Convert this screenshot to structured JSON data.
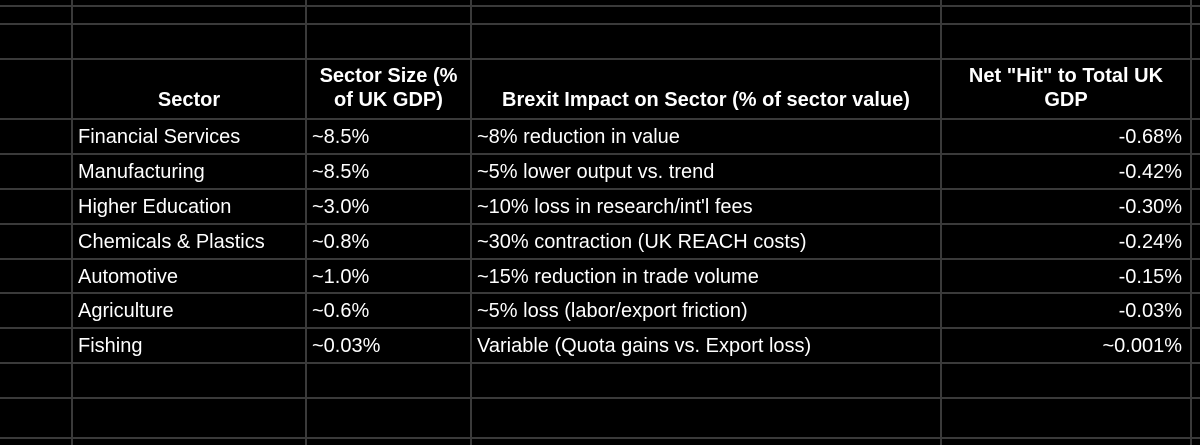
{
  "table": {
    "headers": {
      "sector": "Sector",
      "size": "Sector Size (% of UK GDP)",
      "impact": "Brexit Impact on Sector (% of sector value)",
      "net": "Net \"Hit\" to Total UK GDP"
    },
    "rows": [
      {
        "sector": "Financial Services",
        "size": "~8.5%",
        "impact": "~8% reduction in value",
        "net": "-0.68%"
      },
      {
        "sector": "Manufacturing",
        "size": "~8.5%",
        "impact": "~5% lower output vs. trend",
        "net": "-0.42%"
      },
      {
        "sector": "Higher Education",
        "size": "~3.0%",
        "impact": "~10% loss in research/int'l fees",
        "net": "-0.30%"
      },
      {
        "sector": "Chemicals & Plastics",
        "size": "~0.8%",
        "impact": "~30% contraction (UK REACH costs)",
        "net": "-0.24%"
      },
      {
        "sector": "Automotive",
        "size": "~1.0%",
        "impact": "~15% reduction in trade volume",
        "net": "-0.15%"
      },
      {
        "sector": "Agriculture",
        "size": "~0.6%",
        "impact": "~5% loss (labor/export friction)",
        "net": "-0.03%"
      },
      {
        "sector": "Fishing",
        "size": "~0.03%",
        "impact": "Variable (Quota gains vs. Export loss)",
        "net": "~0.001%"
      }
    ]
  },
  "colors": {
    "background": "#000000",
    "gridline": "#3a3a3a",
    "text": "#ffffff"
  }
}
